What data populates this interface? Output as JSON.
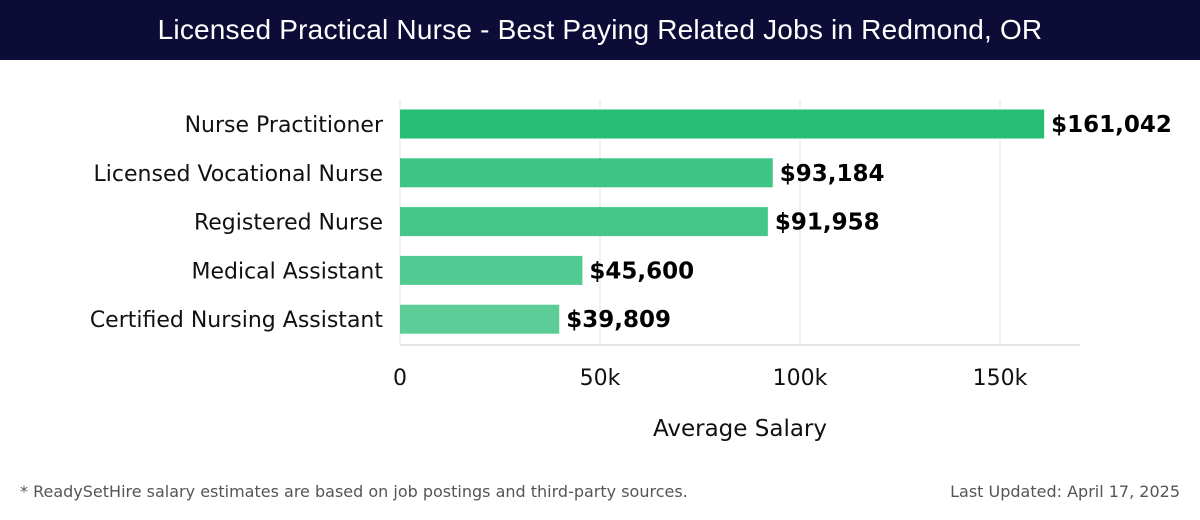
{
  "header": {
    "title": "Licensed Practical Nurse - Best Paying Related Jobs in Redmond, OR"
  },
  "chart_data": {
    "type": "bar",
    "orientation": "horizontal",
    "categories": [
      "Nurse Practitioner",
      "Licensed Vocational Nurse",
      "Registered Nurse",
      "Medical Assistant",
      "Certified Nursing Assistant"
    ],
    "values": [
      161042,
      93184,
      91958,
      45600,
      39809
    ],
    "value_labels": [
      "$161,042",
      "$93,184",
      "$91,958",
      "$45,600",
      "$39,809"
    ],
    "xlabel": "Average Salary",
    "ylabel": "",
    "xlim": [
      0,
      170000
    ],
    "xticks": [
      0,
      50000,
      100000,
      150000
    ],
    "xtick_labels": [
      "0",
      "50k",
      "100k",
      "150k"
    ],
    "grid": true,
    "bar_colors": [
      "#27bd75",
      "#3ec585",
      "#44c689",
      "#52cb92",
      "#5dcd98"
    ]
  },
  "footer": {
    "note": "* ReadySetHire salary estimates are based on job postings and third-party sources.",
    "updated": "Last Updated: April 17, 2025"
  },
  "colors": {
    "title_bg": "#0c0c36",
    "title_text": "#ffffff",
    "grid": "#e3e3e3",
    "axis": "#cccccc"
  }
}
